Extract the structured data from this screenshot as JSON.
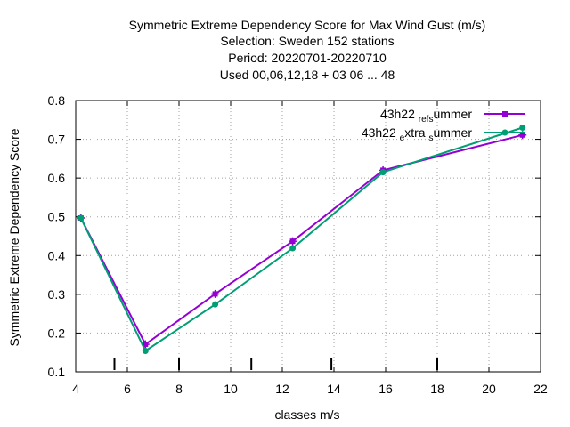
{
  "chart_data": {
    "type": "line",
    "title_lines": [
      "Symmetric Extreme Dependency Score  for Max Wind Gust (m/s)",
      "Selection: Sweden    152 stations",
      "Period: 20220701-20220710",
      "Used  00,06,12,18  + 03 06 ... 48"
    ],
    "xlabel": "classes m/s",
    "ylabel": "Symmetric Extreme Dependency Score",
    "xlim": [
      4,
      22
    ],
    "ylim": [
      0.1,
      0.8
    ],
    "xticks": [
      4,
      6,
      8,
      10,
      12,
      14,
      16,
      18,
      20,
      22
    ],
    "xtick_labels": [
      "4",
      "6",
      "8",
      "10",
      "12",
      "14",
      "16",
      "18",
      "20",
      "22"
    ],
    "yticks": [
      0.1,
      0.2,
      0.3,
      0.4,
      0.5,
      0.6,
      0.7,
      0.8
    ],
    "ytick_labels": [
      "0.1",
      "0.2",
      "0.3",
      "0.4",
      "0.5",
      "0.6",
      "0.7",
      "0.8"
    ],
    "grid": true,
    "legend_position": "top-right",
    "class_markers_x": [
      5.5,
      8.0,
      10.8,
      13.9,
      18.0
    ],
    "series": [
      {
        "name": "43h22_ref_summer",
        "legend_parts": [
          "43h22 ",
          "ref",
          "s",
          "ummer"
        ],
        "color": "#9400d3",
        "x": [
          4.2,
          6.7,
          9.4,
          12.4,
          15.9,
          21.3
        ],
        "y": [
          0.497,
          0.171,
          0.301,
          0.437,
          0.62,
          0.711
        ]
      },
      {
        "name": "43h22_extra_summer",
        "legend_parts": [
          "43h22 ",
          "e",
          "xtra ",
          "s",
          "ummer"
        ],
        "color": "#009e73",
        "x": [
          4.2,
          6.7,
          9.4,
          12.4,
          15.9,
          21.3
        ],
        "y": [
          0.497,
          0.154,
          0.274,
          0.419,
          0.615,
          0.73
        ]
      }
    ]
  }
}
